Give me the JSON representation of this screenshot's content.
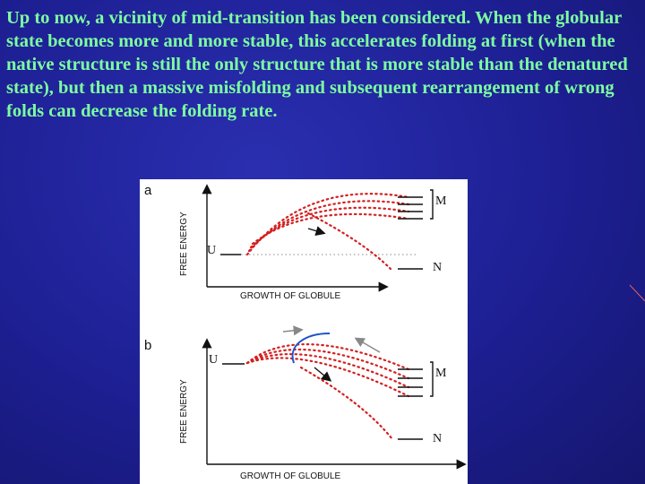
{
  "paragraph": "Up to now, a vicinity of mid-transition has been considered. When the globular state becomes more and more stable, this accelerates folding at first (when the native structure is still the only structure that is more stable than the denatured state), but then a massive misfolding and subsequent rearrangement of wrong folds can decrease the folding rate.",
  "figure": {
    "panel_a": {
      "letter": "a",
      "y_axis_label": "FREE ENERGY",
      "x_axis_label": "GROWTH OF GLOBULE",
      "label_unfolded": "U",
      "label_misfolded": "M",
      "label_native": "N"
    },
    "panel_b": {
      "letter": "b",
      "y_axis_label": "FREE ENERGY",
      "x_axis_label": "GROWTH OF GLOBULE",
      "label_unfolded": "U",
      "label_misfolded": "M",
      "label_native": "N"
    }
  },
  "colors": {
    "background": "#1d1f93",
    "text": "#7dffa0",
    "dotted_curves": "#d42020",
    "barrier_curve": "#1f55c9",
    "axes": "#111111"
  }
}
